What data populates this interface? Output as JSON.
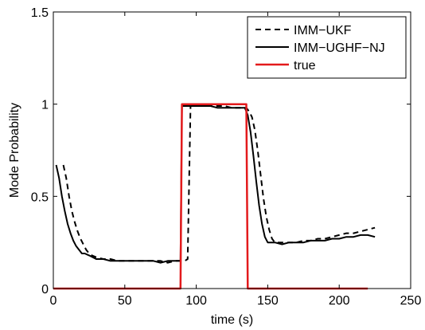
{
  "chart_data": {
    "type": "line",
    "title": "",
    "xlabel": "time (s)",
    "ylabel": "Mode Probability",
    "xlim": [
      0,
      250
    ],
    "ylim": [
      0,
      1.5
    ],
    "xticks": [
      0,
      50,
      100,
      150,
      200,
      250
    ],
    "yticks": [
      0,
      0.5,
      1,
      1.5
    ],
    "xtick_labels": [
      "0",
      "50",
      "100",
      "150",
      "200",
      "250"
    ],
    "ytick_labels": [
      "0",
      "0.5",
      "1",
      "1.5"
    ],
    "grid": false,
    "legend_position": "top-right",
    "series": [
      {
        "name": "IMM−UKF",
        "color": "#000000",
        "dash": "dashed",
        "x": [
          7,
          9,
          11,
          13,
          15,
          17,
          19,
          21,
          23,
          25,
          27,
          30,
          35,
          40,
          45,
          50,
          55,
          60,
          65,
          70,
          75,
          80,
          85,
          90,
          92,
          94,
          96,
          100,
          105,
          110,
          115,
          120,
          125,
          130,
          135,
          137,
          139,
          141,
          143,
          145,
          147,
          149,
          151,
          153,
          155,
          160,
          165,
          170,
          175,
          180,
          185,
          190,
          195,
          200,
          205,
          210,
          215,
          220,
          225
        ],
        "y": [
          0.67,
          0.6,
          0.5,
          0.42,
          0.36,
          0.31,
          0.27,
          0.24,
          0.21,
          0.19,
          0.18,
          0.17,
          0.16,
          0.16,
          0.15,
          0.15,
          0.15,
          0.15,
          0.15,
          0.15,
          0.15,
          0.14,
          0.15,
          0.15,
          0.15,
          0.16,
          0.99,
          0.99,
          0.99,
          0.99,
          0.99,
          0.99,
          0.98,
          0.98,
          0.98,
          0.96,
          0.93,
          0.86,
          0.75,
          0.62,
          0.49,
          0.39,
          0.32,
          0.27,
          0.25,
          0.25,
          0.25,
          0.25,
          0.26,
          0.26,
          0.27,
          0.27,
          0.28,
          0.29,
          0.3,
          0.3,
          0.31,
          0.32,
          0.33
        ]
      },
      {
        "name": "IMM−UGHF−NJ",
        "color": "#000000",
        "dash": "solid",
        "x": [
          2,
          4,
          6,
          8,
          10,
          12,
          14,
          16,
          18,
          20,
          22,
          25,
          30,
          35,
          40,
          45,
          50,
          55,
          60,
          65,
          70,
          75,
          80,
          85,
          89,
          90,
          95,
          100,
          105,
          110,
          115,
          120,
          125,
          130,
          134,
          136,
          138,
          140,
          142,
          144,
          146,
          148,
          150,
          155,
          160,
          165,
          170,
          175,
          180,
          185,
          190,
          195,
          200,
          205,
          210,
          215,
          220,
          225
        ],
        "y": [
          0.67,
          0.6,
          0.5,
          0.42,
          0.35,
          0.3,
          0.26,
          0.23,
          0.21,
          0.19,
          0.19,
          0.18,
          0.16,
          0.16,
          0.15,
          0.15,
          0.15,
          0.15,
          0.15,
          0.15,
          0.15,
          0.14,
          0.15,
          0.15,
          0.15,
          0.99,
          0.99,
          0.99,
          0.99,
          0.99,
          0.98,
          0.98,
          0.98,
          0.98,
          0.98,
          0.94,
          0.85,
          0.72,
          0.58,
          0.45,
          0.35,
          0.28,
          0.25,
          0.25,
          0.24,
          0.25,
          0.25,
          0.25,
          0.26,
          0.26,
          0.26,
          0.27,
          0.27,
          0.28,
          0.28,
          0.29,
          0.29,
          0.28
        ]
      },
      {
        "name": "true",
        "color": "#e31a1c",
        "dash": "solid",
        "x": [
          0,
          89,
          90,
          135,
          136,
          220
        ],
        "y": [
          0,
          0,
          1,
          1,
          0,
          0
        ]
      }
    ]
  }
}
